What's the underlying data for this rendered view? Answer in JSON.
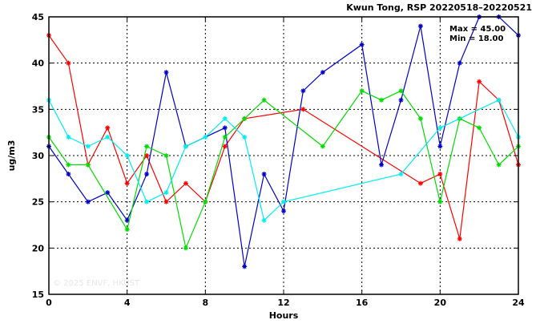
{
  "chart_data": {
    "type": "line",
    "title": "Kwun Tong, RSP 20220518–20220521",
    "xlabel": "Hours",
    "ylabel": "ug/m3",
    "xlim": [
      0,
      24
    ],
    "ylim": [
      15,
      45
    ],
    "xticks": [
      0,
      4,
      8,
      12,
      16,
      20,
      24
    ],
    "yticks": [
      15,
      20,
      25,
      30,
      35,
      40,
      45
    ],
    "grid": true,
    "stats": {
      "max_label": "Max = 45.00",
      "min_label": "Min = 18.00"
    },
    "watermark": "© 2025  ENVF, HKUST",
    "series": [
      {
        "color": "#ff0000",
        "marker": "star",
        "x": [
          0,
          1,
          2,
          3,
          4,
          5,
          6,
          7,
          8,
          9,
          10,
          13,
          19,
          20,
          21,
          22,
          23,
          24
        ],
        "y": [
          43,
          40,
          29,
          33,
          27,
          30,
          25,
          27,
          25,
          31,
          34,
          35,
          27,
          28,
          21,
          38,
          36,
          29
        ]
      },
      {
        "color": "#0000cc",
        "marker": "star",
        "x": [
          0,
          1,
          2,
          3,
          4,
          5,
          6,
          7,
          9,
          10,
          11,
          12,
          13,
          14,
          16,
          17,
          18,
          19,
          20,
          21,
          22,
          23,
          24
        ],
        "y": [
          31,
          28,
          25,
          26,
          23,
          28,
          39,
          31,
          33,
          18,
          28,
          24,
          37,
          39,
          42,
          29,
          36,
          44,
          31,
          40,
          45,
          45,
          43
        ]
      },
      {
        "color": "#00dd00",
        "marker": "star",
        "x": [
          0,
          1,
          2,
          4,
          5,
          6,
          7,
          8,
          9,
          10,
          11,
          14,
          16,
          17,
          18,
          19,
          20,
          21,
          22,
          23,
          24
        ],
        "y": [
          32,
          29,
          29,
          22,
          31,
          30,
          20,
          25,
          32,
          34,
          36,
          31,
          37,
          36,
          37,
          34,
          25,
          34,
          33,
          29,
          31
        ]
      },
      {
        "color": "#00eeee",
        "marker": "star",
        "x": [
          0,
          1,
          2,
          3,
          4,
          5,
          6,
          7,
          8,
          9,
          10,
          11,
          12,
          18,
          20,
          23,
          24
        ],
        "y": [
          36,
          32,
          31,
          32,
          30,
          25,
          26,
          31,
          32,
          34,
          32,
          23,
          25,
          28,
          33,
          36,
          32
        ]
      }
    ]
  }
}
